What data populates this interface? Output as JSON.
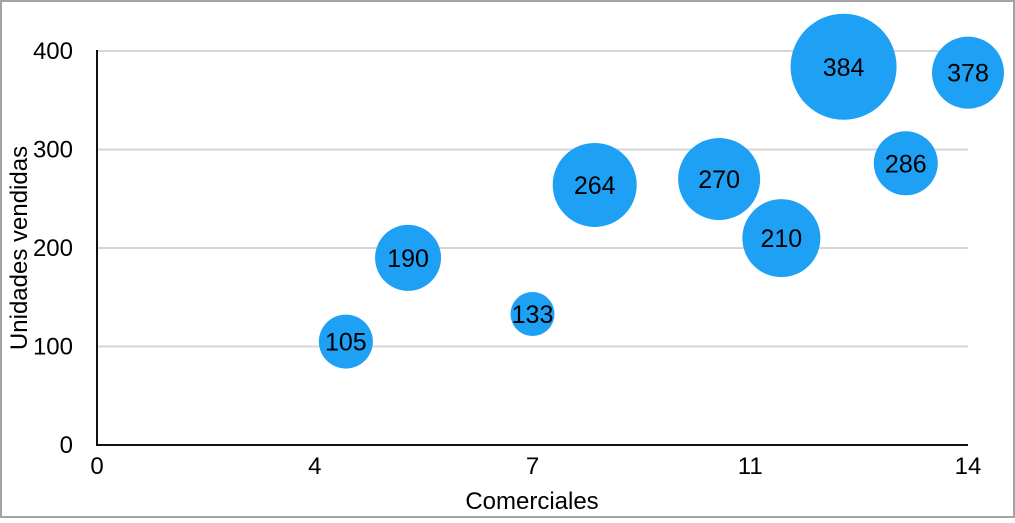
{
  "chart_data": {
    "type": "scatter",
    "subtype": "bubble",
    "title": "",
    "xlabel": "Comerciales",
    "ylabel": "Unidades vendidas",
    "xlim": [
      0,
      14
    ],
    "ylim": [
      0,
      400
    ],
    "grid": "horizontal",
    "legend": "none",
    "x_ticks": {
      "positions": [
        0,
        3.5,
        7,
        10.5,
        14
      ],
      "labels": [
        "0",
        "4",
        "7",
        "11",
        "14"
      ]
    },
    "y_ticks": {
      "positions": [
        0,
        100,
        200,
        300,
        400
      ],
      "labels": [
        "0",
        "100",
        "200",
        "300",
        "400"
      ]
    },
    "points": [
      {
        "x": 4,
        "y": 105,
        "label": "105",
        "radius_px": 27
      },
      {
        "x": 5,
        "y": 190,
        "label": "190",
        "radius_px": 33
      },
      {
        "x": 7,
        "y": 133,
        "label": "133",
        "radius_px": 22
      },
      {
        "x": 8,
        "y": 264,
        "label": "264",
        "radius_px": 42
      },
      {
        "x": 10,
        "y": 270,
        "label": "270",
        "radius_px": 41
      },
      {
        "x": 11,
        "y": 210,
        "label": "210",
        "radius_px": 39
      },
      {
        "x": 12,
        "y": 384,
        "label": "384",
        "radius_px": 53
      },
      {
        "x": 13,
        "y": 286,
        "label": "286",
        "radius_px": 32
      },
      {
        "x": 14,
        "y": 378,
        "label": "378",
        "radius_px": 36
      }
    ],
    "colors": {
      "bubble": "#1EA0F5",
      "bubble_label": "#000000",
      "grid": "#d6d6d6",
      "axis": "#111111",
      "text": "#000000",
      "background": "#ffffff",
      "frame_border": "#a3a3a3"
    }
  }
}
